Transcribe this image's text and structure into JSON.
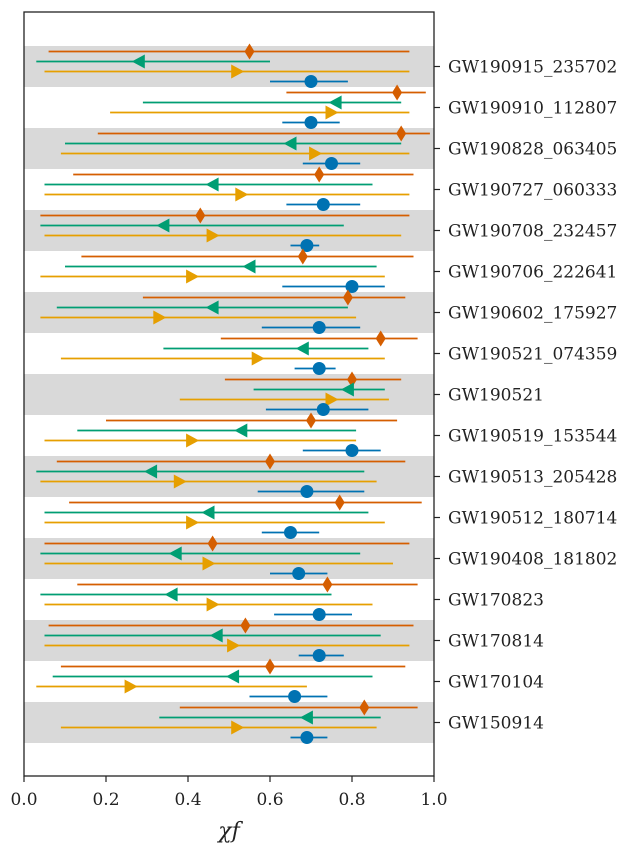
{
  "chart_data": {
    "type": "scatter",
    "title": "",
    "xlabel": "χf",
    "ylabel": "",
    "xlim": [
      0.0,
      1.0
    ],
    "xticks": [
      "0.0",
      "0.2",
      "0.4",
      "0.6",
      "0.8",
      "1.0"
    ],
    "grid": false,
    "legend": "none",
    "series_colors": {
      "orange_diamond": "#d55e00",
      "green_left_triangle": "#009e73",
      "gold_right_triangle": "#e69f00",
      "blue_circle": "#0072b2"
    },
    "band_color": "#d9d9d9",
    "events": [
      {
        "name": "GW190915_235702",
        "shaded": true,
        "orange": {
          "median": 0.55,
          "lo": 0.06,
          "hi": 0.94
        },
        "green": {
          "median": 0.28,
          "lo": 0.03,
          "hi": 0.6
        },
        "gold": {
          "median": 0.52,
          "lo": 0.05,
          "hi": 0.94
        },
        "blue": {
          "median": 0.7,
          "lo": 0.6,
          "hi": 0.79
        }
      },
      {
        "name": "GW190910_112807",
        "shaded": false,
        "orange": {
          "median": 0.91,
          "lo": 0.64,
          "hi": 0.98
        },
        "green": {
          "median": 0.76,
          "lo": 0.29,
          "hi": 0.92
        },
        "gold": {
          "median": 0.75,
          "lo": 0.21,
          "hi": 0.94
        },
        "blue": {
          "median": 0.7,
          "lo": 0.63,
          "hi": 0.77
        }
      },
      {
        "name": "GW190828_063405",
        "shaded": true,
        "orange": {
          "median": 0.92,
          "lo": 0.18,
          "hi": 0.99
        },
        "green": {
          "median": 0.65,
          "lo": 0.1,
          "hi": 0.92
        },
        "gold": {
          "median": 0.71,
          "lo": 0.09,
          "hi": 0.94
        },
        "blue": {
          "median": 0.75,
          "lo": 0.68,
          "hi": 0.82
        }
      },
      {
        "name": "GW190727_060333",
        "shaded": false,
        "orange": {
          "median": 0.72,
          "lo": 0.12,
          "hi": 0.95
        },
        "green": {
          "median": 0.46,
          "lo": 0.05,
          "hi": 0.85
        },
        "gold": {
          "median": 0.53,
          "lo": 0.05,
          "hi": 0.94
        },
        "blue": {
          "median": 0.73,
          "lo": 0.64,
          "hi": 0.82
        }
      },
      {
        "name": "GW190708_232457",
        "shaded": true,
        "orange": {
          "median": 0.43,
          "lo": 0.04,
          "hi": 0.94
        },
        "green": {
          "median": 0.34,
          "lo": 0.04,
          "hi": 0.78
        },
        "gold": {
          "median": 0.46,
          "lo": 0.05,
          "hi": 0.92
        },
        "blue": {
          "median": 0.69,
          "lo": 0.65,
          "hi": 0.72
        }
      },
      {
        "name": "GW190706_222641",
        "shaded": false,
        "orange": {
          "median": 0.68,
          "lo": 0.14,
          "hi": 0.95
        },
        "green": {
          "median": 0.55,
          "lo": 0.1,
          "hi": 0.86
        },
        "gold": {
          "median": 0.41,
          "lo": 0.04,
          "hi": 0.88
        },
        "blue": {
          "median": 0.8,
          "lo": 0.63,
          "hi": 0.88
        }
      },
      {
        "name": "GW190602_175927",
        "shaded": true,
        "orange": {
          "median": 0.79,
          "lo": 0.29,
          "hi": 0.93
        },
        "green": {
          "median": 0.46,
          "lo": 0.08,
          "hi": 0.79
        },
        "gold": {
          "median": 0.33,
          "lo": 0.04,
          "hi": 0.81
        },
        "blue": {
          "median": 0.72,
          "lo": 0.58,
          "hi": 0.82
        }
      },
      {
        "name": "GW190521_074359",
        "shaded": false,
        "orange": {
          "median": 0.87,
          "lo": 0.48,
          "hi": 0.96
        },
        "green": {
          "median": 0.68,
          "lo": 0.34,
          "hi": 0.84
        },
        "gold": {
          "median": 0.57,
          "lo": 0.09,
          "hi": 0.88
        },
        "blue": {
          "median": 0.72,
          "lo": 0.66,
          "hi": 0.76
        }
      },
      {
        "name": "GW190521",
        "shaded": true,
        "orange": {
          "median": 0.8,
          "lo": 0.49,
          "hi": 0.92
        },
        "green": {
          "median": 0.79,
          "lo": 0.56,
          "hi": 0.88
        },
        "gold": {
          "median": 0.75,
          "lo": 0.38,
          "hi": 0.89
        },
        "blue": {
          "median": 0.73,
          "lo": 0.59,
          "hi": 0.84
        }
      },
      {
        "name": "GW190519_153544",
        "shaded": false,
        "orange": {
          "median": 0.7,
          "lo": 0.2,
          "hi": 0.91
        },
        "green": {
          "median": 0.53,
          "lo": 0.13,
          "hi": 0.81
        },
        "gold": {
          "median": 0.41,
          "lo": 0.05,
          "hi": 0.81
        },
        "blue": {
          "median": 0.8,
          "lo": 0.68,
          "hi": 0.87
        }
      },
      {
        "name": "GW190513_205428",
        "shaded": true,
        "orange": {
          "median": 0.6,
          "lo": 0.08,
          "hi": 0.93
        },
        "green": {
          "median": 0.31,
          "lo": 0.03,
          "hi": 0.83
        },
        "gold": {
          "median": 0.38,
          "lo": 0.04,
          "hi": 0.86
        },
        "blue": {
          "median": 0.69,
          "lo": 0.57,
          "hi": 0.83
        }
      },
      {
        "name": "GW190512_180714",
        "shaded": false,
        "orange": {
          "median": 0.77,
          "lo": 0.11,
          "hi": 0.97
        },
        "green": {
          "median": 0.45,
          "lo": 0.05,
          "hi": 0.84
        },
        "gold": {
          "median": 0.41,
          "lo": 0.05,
          "hi": 0.88
        },
        "blue": {
          "median": 0.65,
          "lo": 0.58,
          "hi": 0.72
        }
      },
      {
        "name": "GW190408_181802",
        "shaded": true,
        "orange": {
          "median": 0.46,
          "lo": 0.05,
          "hi": 0.94
        },
        "green": {
          "median": 0.37,
          "lo": 0.04,
          "hi": 0.82
        },
        "gold": {
          "median": 0.45,
          "lo": 0.05,
          "hi": 0.9
        },
        "blue": {
          "median": 0.67,
          "lo": 0.6,
          "hi": 0.74
        }
      },
      {
        "name": "GW170823",
        "shaded": false,
        "orange": {
          "median": 0.74,
          "lo": 0.13,
          "hi": 0.96
        },
        "green": {
          "median": 0.36,
          "lo": 0.04,
          "hi": 0.75
        },
        "gold": {
          "median": 0.46,
          "lo": 0.05,
          "hi": 0.85
        },
        "blue": {
          "median": 0.72,
          "lo": 0.61,
          "hi": 0.8
        }
      },
      {
        "name": "GW170814",
        "shaded": true,
        "orange": {
          "median": 0.54,
          "lo": 0.06,
          "hi": 0.95
        },
        "green": {
          "median": 0.47,
          "lo": 0.05,
          "hi": 0.87
        },
        "gold": {
          "median": 0.51,
          "lo": 0.05,
          "hi": 0.94
        },
        "blue": {
          "median": 0.72,
          "lo": 0.67,
          "hi": 0.78
        }
      },
      {
        "name": "GW170104",
        "shaded": false,
        "orange": {
          "median": 0.6,
          "lo": 0.09,
          "hi": 0.93
        },
        "green": {
          "median": 0.51,
          "lo": 0.07,
          "hi": 0.85
        },
        "gold": {
          "median": 0.26,
          "lo": 0.03,
          "hi": 0.69
        },
        "blue": {
          "median": 0.66,
          "lo": 0.55,
          "hi": 0.74
        }
      },
      {
        "name": "GW150914",
        "shaded": true,
        "orange": {
          "median": 0.83,
          "lo": 0.38,
          "hi": 0.96
        },
        "green": {
          "median": 0.69,
          "lo": 0.33,
          "hi": 0.87
        },
        "gold": {
          "median": 0.52,
          "lo": 0.09,
          "hi": 0.86
        },
        "blue": {
          "median": 0.69,
          "lo": 0.65,
          "hi": 0.74
        }
      }
    ]
  }
}
